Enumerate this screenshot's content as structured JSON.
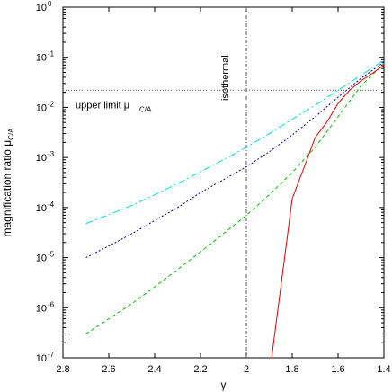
{
  "chart_data": {
    "type": "line",
    "title": "",
    "xlabel": "γ",
    "ylabel": "magnification ratio μ",
    "ylabel_sub": "C/A",
    "x_reversed": true,
    "xlim": [
      2.8,
      1.4
    ],
    "ylim": [
      1e-07,
      1
    ],
    "y_scale": "log",
    "grid": false,
    "x_ticks": [
      {
        "value": 2.8,
        "label": "2.8"
      },
      {
        "value": 2.6,
        "label": "2.6"
      },
      {
        "value": 2.4,
        "label": "2.4"
      },
      {
        "value": 2.2,
        "label": "2.2"
      },
      {
        "value": 2.0,
        "label": "2"
      },
      {
        "value": 1.8,
        "label": "1.8"
      },
      {
        "value": 1.6,
        "label": "1.6"
      },
      {
        "value": 1.4,
        "label": "1.4"
      }
    ],
    "y_ticks": [
      {
        "value": 1e-07,
        "base": "10",
        "exp": "-7"
      },
      {
        "value": 1e-06,
        "base": "10",
        "exp": "-6"
      },
      {
        "value": 1e-05,
        "base": "10",
        "exp": "-5"
      },
      {
        "value": 0.0001,
        "base": "10",
        "exp": "-4"
      },
      {
        "value": 0.001,
        "base": "10",
        "exp": "-3"
      },
      {
        "value": 0.01,
        "base": "10",
        "exp": "-2"
      },
      {
        "value": 0.1,
        "base": "10",
        "exp": "-1"
      },
      {
        "value": 1,
        "base": "10",
        "exp": "0"
      }
    ],
    "series": [
      {
        "color": "#00e0e0",
        "dash": "8,3,2,3",
        "x": [
          2.7,
          2.6,
          2.5,
          2.4,
          2.3,
          2.2,
          2.1,
          2.0,
          1.9,
          1.8,
          1.7,
          1.6,
          1.5,
          1.4
        ],
        "y": [
          4.8e-05,
          7.2e-05,
          0.00011,
          0.00018,
          0.0003,
          0.00052,
          0.0009,
          0.0016,
          0.003,
          0.0058,
          0.011,
          0.022,
          0.044,
          0.088
        ]
      },
      {
        "color": "#0000a0",
        "dash": "2,2",
        "x": [
          2.7,
          2.6,
          2.5,
          2.4,
          2.3,
          2.2,
          2.1,
          2.0,
          1.9,
          1.8,
          1.7,
          1.6,
          1.5,
          1.4
        ],
        "y": [
          1e-05,
          1.7e-05,
          3e-05,
          5.5e-05,
          0.0001,
          0.0002,
          0.00036,
          0.00065,
          0.0013,
          0.0028,
          0.0065,
          0.016,
          0.038,
          0.08
        ]
      },
      {
        "color": "#00c000",
        "dash": "4,3",
        "x": [
          2.7,
          2.6,
          2.5,
          2.4,
          2.3,
          2.2,
          2.1,
          2.0,
          1.9,
          1.8,
          1.7,
          1.6,
          1.5,
          1.4
        ],
        "y": [
          3e-07,
          6e-07,
          1.2e-06,
          2.6e-06,
          5.8e-06,
          1.3e-05,
          3e-05,
          7e-05,
          0.00018,
          0.0005,
          0.0016,
          0.0065,
          0.027,
          0.075
        ]
      },
      {
        "color": "#e00000",
        "dash": "",
        "x": [
          1.89,
          1.85,
          1.8,
          1.75,
          1.7,
          1.65,
          1.6,
          1.55,
          1.5,
          1.45,
          1.4
        ],
        "y": [
          1e-07,
          2.5e-06,
          0.00015,
          0.0006,
          0.0025,
          0.005,
          0.012,
          0.022,
          0.034,
          0.048,
          0.07
        ]
      }
    ],
    "annotations": [
      {
        "text": "isothermal",
        "type": "vline",
        "x": 2.0
      },
      {
        "text": "upper limit μ",
        "sub": "C/A",
        "type": "hline",
        "y": 0.022
      }
    ]
  }
}
